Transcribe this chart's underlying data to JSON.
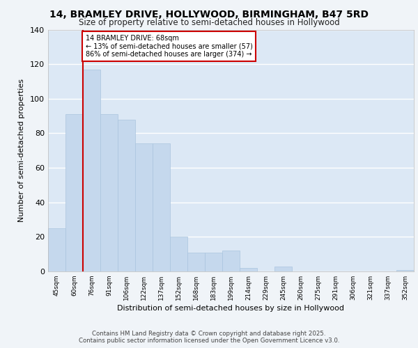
{
  "title1": "14, BRAMLEY DRIVE, HOLLYWOOD, BIRMINGHAM, B47 5RD",
  "title2": "Size of property relative to semi-detached houses in Hollywood",
  "xlabel": "Distribution of semi-detached houses by size in Hollywood",
  "ylabel": "Number of semi-detached properties",
  "categories": [
    "45sqm",
    "60sqm",
    "76sqm",
    "91sqm",
    "106sqm",
    "122sqm",
    "137sqm",
    "152sqm",
    "168sqm",
    "183sqm",
    "199sqm",
    "214sqm",
    "229sqm",
    "245sqm",
    "260sqm",
    "275sqm",
    "291sqm",
    "306sqm",
    "321sqm",
    "337sqm",
    "352sqm"
  ],
  "values": [
    25,
    91,
    117,
    91,
    88,
    74,
    74,
    20,
    11,
    11,
    12,
    2,
    0,
    3,
    0,
    0,
    0,
    0,
    0,
    0,
    1
  ],
  "bar_color": "#c5d8ed",
  "bar_edgecolor": "#aac4de",
  "vline_x_idx": 1.5,
  "vline_color": "#cc0000",
  "annotation_text_line1": "14 BRAMLEY DRIVE: 68sqm",
  "annotation_text_line2": "← 13% of semi-detached houses are smaller (57)",
  "annotation_text_line3": "86% of semi-detached houses are larger (374) →",
  "background_color": "#dce8f5",
  "grid_color": "#ffffff",
  "fig_background": "#f0f4f8",
  "ylim": [
    0,
    140
  ],
  "yticks": [
    0,
    20,
    40,
    60,
    80,
    100,
    120,
    140
  ],
  "footer1": "Contains HM Land Registry data © Crown copyright and database right 2025.",
  "footer2": "Contains public sector information licensed under the Open Government Licence v3.0."
}
